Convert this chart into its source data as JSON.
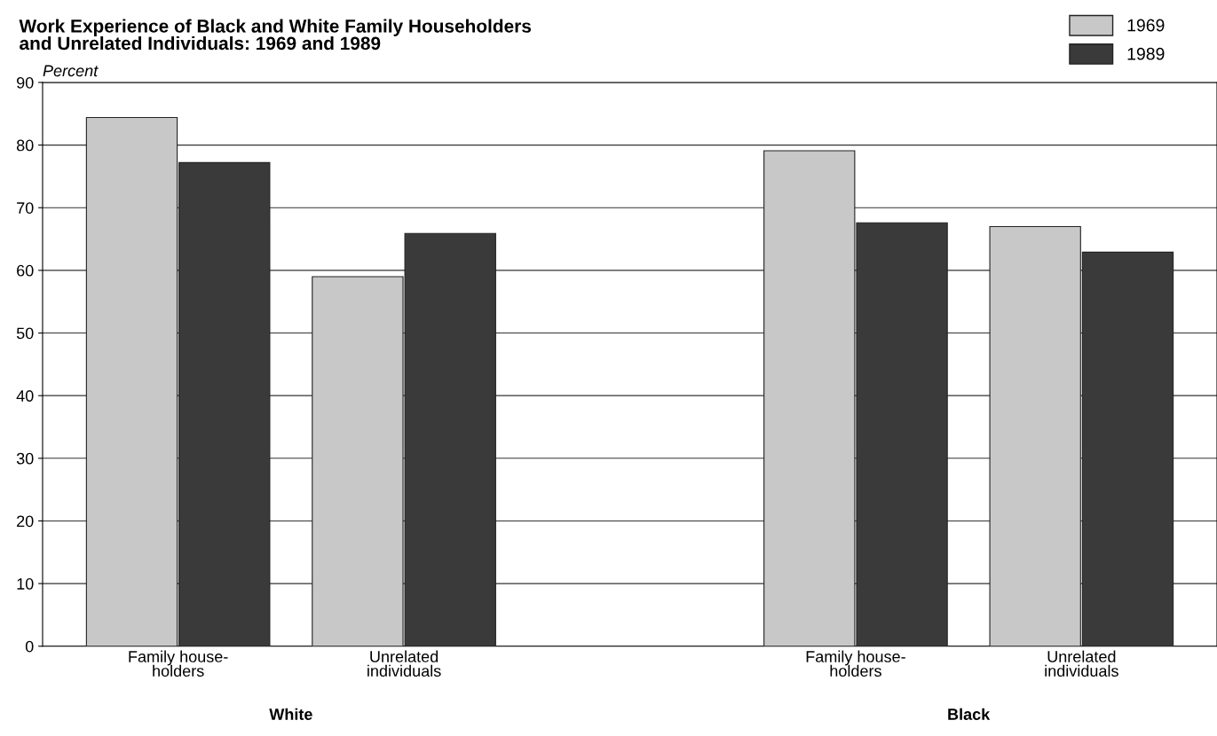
{
  "chart_data": {
    "type": "bar",
    "title": "Work Experience of Black and White Family Householders\nand Unrelated Individuals: 1969 and 1989",
    "ylabel": "Percent",
    "categories": [
      "Family house-\nholders",
      "Unrelated\nindividuals",
      null,
      "Family house-\nholders",
      "Unrelated\nindividuals"
    ],
    "series": [
      {
        "name": "1969",
        "color": "#c8c8c8",
        "values": [
          84.4,
          59.0,
          null,
          79.1,
          67.0
        ]
      },
      {
        "name": "1989",
        "color": "#3a3a3a",
        "values": [
          77.2,
          65.9,
          null,
          67.6,
          62.9
        ]
      }
    ],
    "ylim": [
      0,
      90
    ],
    "yticks": [
      0,
      10,
      20,
      30,
      40,
      50,
      60,
      70,
      80,
      90
    ],
    "grid": "y",
    "legend": "top right",
    "annotations": [
      "White",
      "Black"
    ]
  }
}
